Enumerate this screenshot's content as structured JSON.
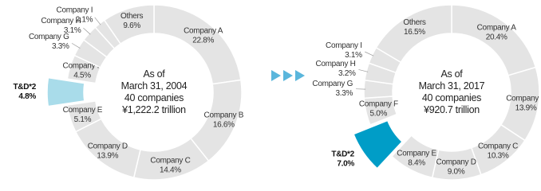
{
  "chart_data": [
    {
      "type": "donut",
      "center_text": [
        "As of",
        "March 31, 2004",
        "40 companies",
        "¥1,222.2 trillion"
      ],
      "categories": [
        "Company A",
        "Company B",
        "Company C",
        "Company D",
        "Company E",
        "T&D*2",
        "Company F",
        "Company G",
        "Company H",
        "Company I",
        "Others"
      ],
      "values": [
        22.8,
        16.6,
        14.4,
        13.9,
        5.1,
        4.8,
        4.5,
        3.3,
        3.1,
        2.1,
        9.6
      ],
      "value_labels": [
        "22.8%",
        "16.6%",
        "14.4%",
        "13.9%",
        "5.1%",
        "4.8%",
        "4.5%",
        "3.3%",
        "3.1%",
        "2.1%",
        "9.6%"
      ],
      "colors": [
        "#e4e4e4",
        "#e4e4e4",
        "#e4e4e4",
        "#e4e4e4",
        "#e4e4e4",
        "#a9dcea",
        "#e4e4e4",
        "#e4e4e4",
        "#e4e4e4",
        "#e4e4e4",
        "#e4e4e4"
      ],
      "explode_index": 5
    },
    {
      "type": "donut",
      "center_text": [
        "As of",
        "March 31, 2017",
        "40 companies",
        "¥920.7 trillion"
      ],
      "categories": [
        "Company A",
        "Company B",
        "Company C",
        "Company D",
        "Company E",
        "T&D*2",
        "Company F",
        "Company G",
        "Company H",
        "Company I",
        "Others"
      ],
      "values": [
        20.4,
        13.9,
        10.3,
        9.0,
        8.4,
        7.0,
        5.0,
        3.3,
        3.2,
        3.1,
        16.5
      ],
      "value_labels": [
        "20.4%",
        "13.9%",
        "10.3%",
        "9.0%",
        "8.4%",
        "7.0%",
        "5.0%",
        "3.3%",
        "3.2%",
        "3.1%",
        "16.5%"
      ],
      "colors": [
        "#e4e4e4",
        "#e4e4e4",
        "#e4e4e4",
        "#e4e4e4",
        "#e4e4e4",
        "#009dc7",
        "#e4e4e4",
        "#e4e4e4",
        "#e4e4e4",
        "#e4e4e4",
        "#e4e4e4"
      ],
      "explode_index": 5
    }
  ]
}
